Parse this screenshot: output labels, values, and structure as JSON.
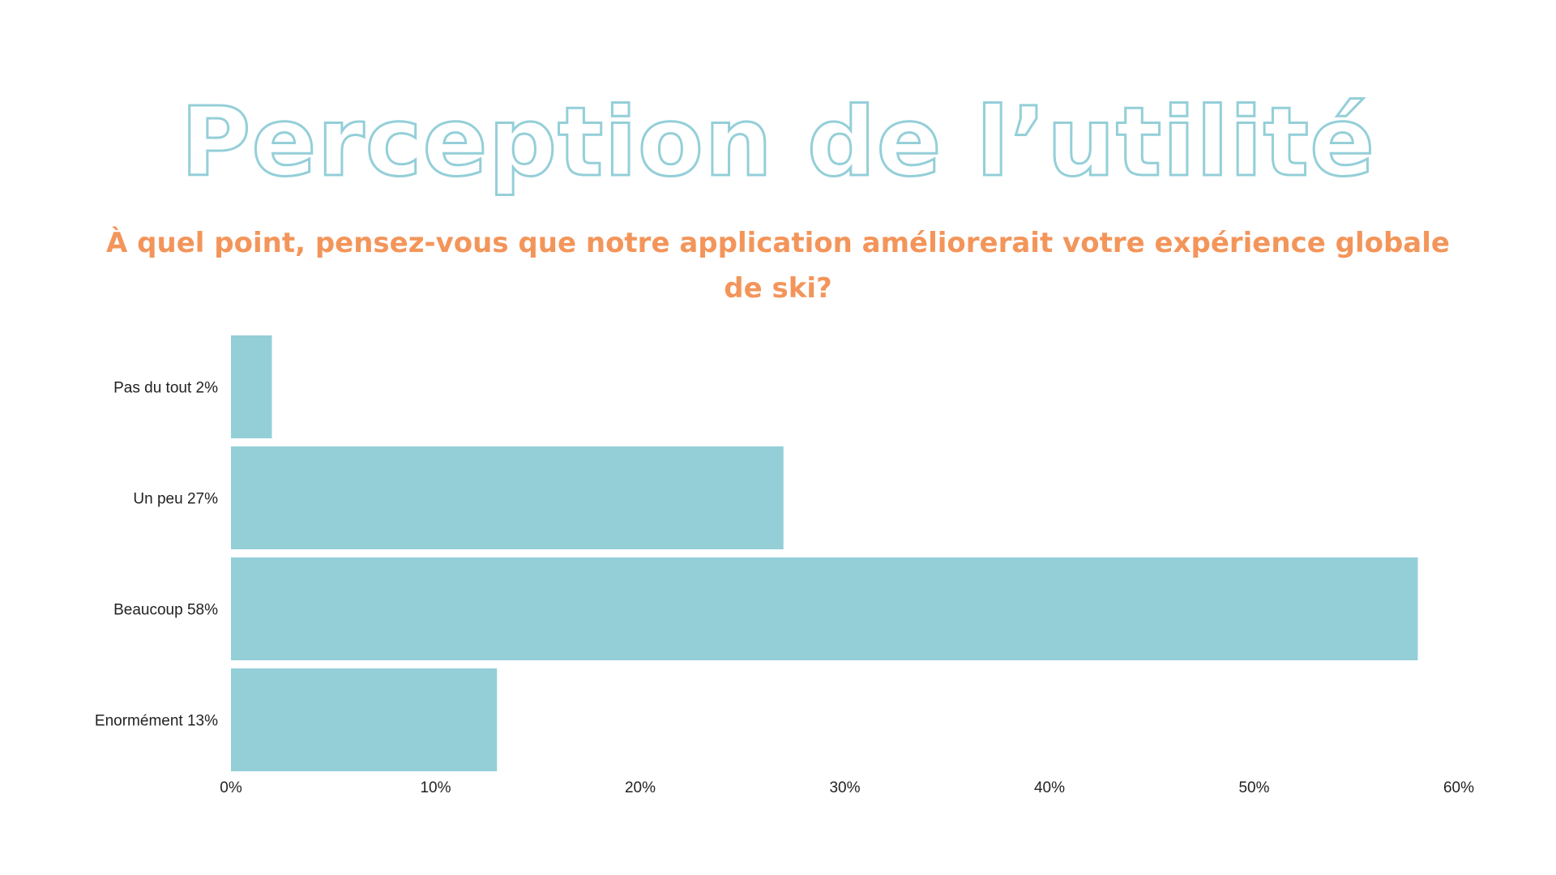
{
  "slide": {
    "title": "Perception de l’utilité",
    "subtitle": "À quel point, pensez-vous que notre application améliorerait votre expérience globale de ski?"
  },
  "colors": {
    "bar": "#94cfd8",
    "title_outline": "#94cfd8",
    "subtitle": "#f3955a",
    "text": "#222222"
  },
  "chart_data": {
    "type": "bar",
    "orientation": "horizontal",
    "categories": [
      "Pas du tout 2%",
      "Un peu 27%",
      "Beaucoup 58%",
      "Enormément 13%"
    ],
    "values": [
      2,
      27,
      58,
      13
    ],
    "xlim": [
      0,
      60
    ],
    "x_ticks": [
      "0%",
      "10%",
      "20%",
      "30%",
      "40%",
      "50%",
      "60%"
    ],
    "grid": false,
    "legend": "none"
  }
}
